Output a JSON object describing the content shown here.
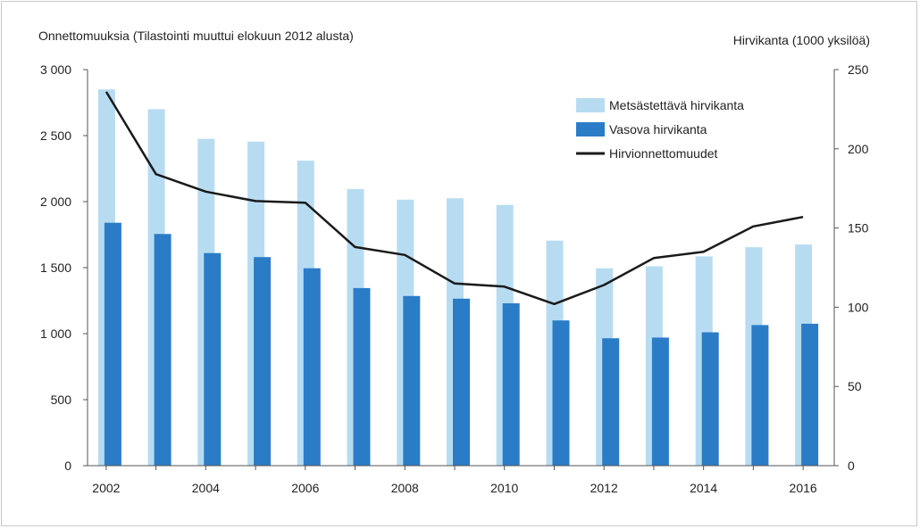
{
  "chart_data": {
    "type": "bar",
    "title_left": "Onnettomuuksia (Tilastointi muuttui elokuun 2012 alusta)",
    "title_right": "Hirvikanta (1000 yksilöä)",
    "x": [
      2002,
      2003,
      2004,
      2005,
      2006,
      2007,
      2008,
      2009,
      2010,
      2011,
      2012,
      2013,
      2014,
      2015,
      2016
    ],
    "x_tick_labels": [
      "2002",
      "2004",
      "2006",
      "2008",
      "2010",
      "2012",
      "2014",
      "2016"
    ],
    "y_left": {
      "ylim": [
        0,
        3000
      ],
      "ticks": [
        0,
        500,
        1000,
        1500,
        2000,
        2500,
        3000
      ],
      "tick_labels": [
        "0",
        "500",
        "1 000",
        "1 500",
        "2 000",
        "2 500",
        "3 000"
      ]
    },
    "y_right": {
      "ylim": [
        0,
        250
      ],
      "ticks": [
        0,
        50,
        100,
        150,
        200,
        250
      ],
      "tick_labels": [
        "0",
        "50",
        "100",
        "150",
        "200",
        "250"
      ]
    },
    "series": [
      {
        "name": "Metsästettävä hirvikanta",
        "type": "bar",
        "axis": "left",
        "color": "#b7dcf2",
        "values": [
          2850,
          2700,
          2475,
          2455,
          2310,
          2095,
          2015,
          2025,
          1975,
          1705,
          1495,
          1510,
          1585,
          1655,
          1675
        ]
      },
      {
        "name": "Vasova hirvikanta",
        "type": "bar",
        "axis": "left",
        "color": "#2a7cc7",
        "values": [
          1840,
          1755,
          1610,
          1580,
          1495,
          1345,
          1285,
          1265,
          1230,
          1100,
          965,
          970,
          1010,
          1065,
          1075
        ]
      },
      {
        "name": "Hirvionnettomuudet",
        "type": "line",
        "axis": "right",
        "color": "#1a1a1a",
        "values": [
          236,
          184,
          173,
          167,
          166,
          138,
          133,
          115,
          113,
          102,
          114,
          131,
          135,
          151,
          157
        ]
      }
    ],
    "legend_position": "top-right",
    "grid": false
  }
}
